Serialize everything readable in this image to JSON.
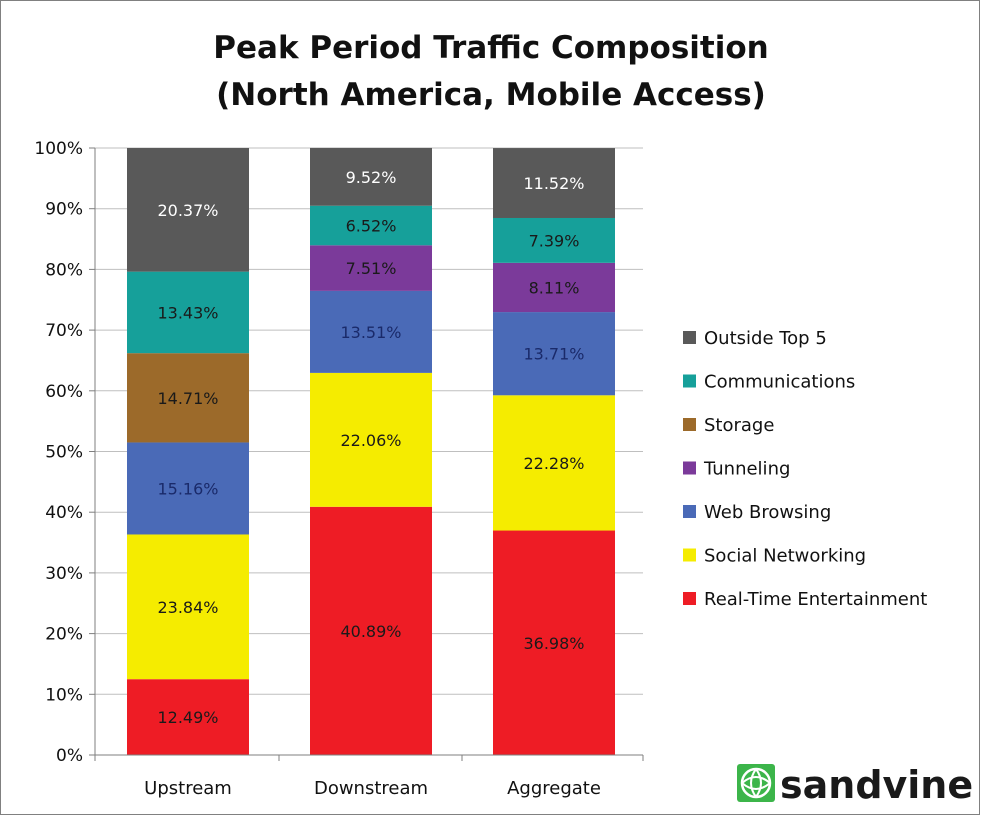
{
  "chart_data": {
    "type": "bar",
    "stacked": true,
    "title_lines": [
      "Peak Period Traffic Composition",
      "(North America, Mobile Access)"
    ],
    "xlabel": "",
    "ylabel": "",
    "categories": [
      "Upstream",
      "Downstream",
      "Aggregate"
    ],
    "ylim": [
      0,
      100
    ],
    "y_ticks": [
      "0%",
      "10%",
      "20%",
      "30%",
      "40%",
      "50%",
      "60%",
      "70%",
      "80%",
      "90%",
      "100%"
    ],
    "y_tick_values": [
      0,
      10,
      20,
      30,
      40,
      50,
      60,
      70,
      80,
      90,
      100
    ],
    "grid": true,
    "legend_position": "right",
    "series": [
      {
        "name": "Real-Time Entertainment",
        "color": "#ee1c25",
        "values": [
          12.49,
          40.89,
          36.98
        ],
        "labels": [
          "12.49%",
          "40.89%",
          "36.98%"
        ],
        "label_color": "#1a1a1a"
      },
      {
        "name": "Social Networking",
        "color": "#f5ec00",
        "values": [
          23.84,
          22.06,
          22.28
        ],
        "labels": [
          "23.84%",
          "22.06%",
          "22.28%"
        ],
        "label_color": "#1a1a1a"
      },
      {
        "name": "Web Browsing",
        "color": "#4a6ab7",
        "values": [
          15.16,
          13.51,
          13.71
        ],
        "labels": [
          "15.16%",
          "13.51%",
          "13.71%"
        ],
        "label_color": "#1a2a6a"
      },
      {
        "name": "Storage",
        "color": "#9c6a2a",
        "values": [
          14.71,
          0,
          0
        ],
        "labels": [
          "14.71%",
          "",
          ""
        ],
        "label_color": "#1a1a1a"
      },
      {
        "name": "Tunneling",
        "color": "#7b3a9a",
        "values": [
          0,
          7.51,
          8.11
        ],
        "labels": [
          "",
          "7.51%",
          "8.11%"
        ],
        "label_color": "#1a1a1a"
      },
      {
        "name": "Communications",
        "color": "#16a09a",
        "values": [
          13.43,
          6.52,
          7.39
        ],
        "labels": [
          "13.43%",
          "6.52%",
          "7.39%"
        ],
        "label_color": "#1a1a1a"
      },
      {
        "name": "Outside Top 5",
        "color": "#595959",
        "values": [
          20.37,
          9.52,
          11.52
        ],
        "labels": [
          "20.37%",
          "9.52%",
          "11.52%"
        ],
        "label_color": "#ffffff"
      }
    ],
    "legend_order": [
      "Outside Top 5",
      "Communications",
      "Storage",
      "Tunneling",
      "Web Browsing",
      "Social Networking",
      "Real-Time Entertainment"
    ]
  },
  "logo": {
    "text": "sandvine",
    "icon": "globe-icon",
    "color": "#3cb54a"
  }
}
